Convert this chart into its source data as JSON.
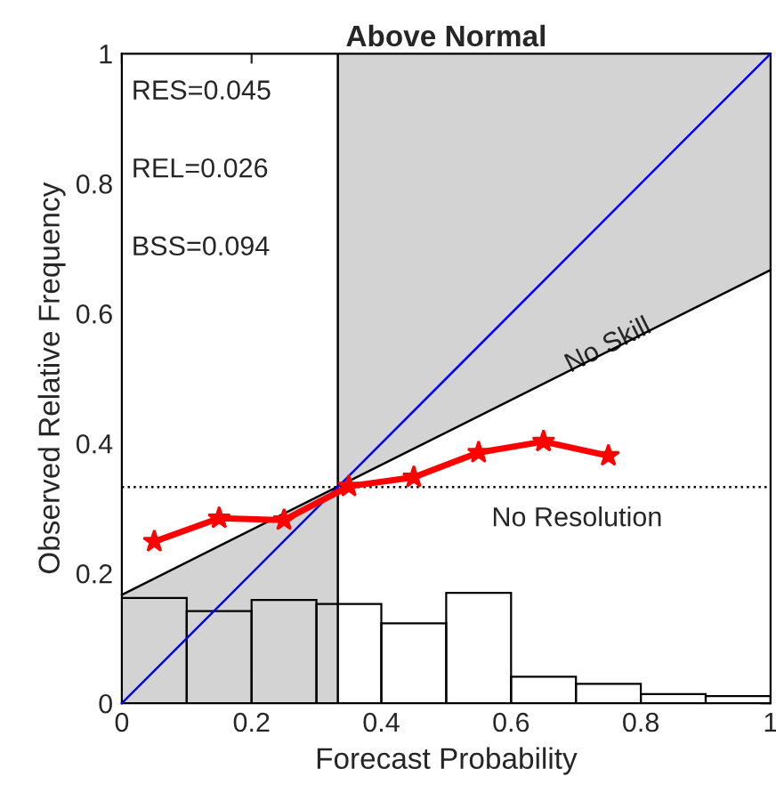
{
  "chart_data": {
    "type": "line",
    "title": "Above Normal",
    "xlabel": "Forecast Probability",
    "ylabel": "Observed Relative Frequency",
    "xlim": [
      0,
      1
    ],
    "ylim": [
      0,
      1
    ],
    "xticks": [
      0,
      0.2,
      0.4,
      0.6,
      0.8,
      1
    ],
    "yticks": [
      0,
      0.2,
      0.4,
      0.6,
      0.8,
      1
    ],
    "grid": false,
    "legend": false,
    "series": [
      {
        "type": "area",
        "color": "#d3d3d3",
        "x": [
          0,
          0.333
        ],
        "values": [
          0.167,
          0.333
        ]
      },
      {
        "type": "area",
        "color": "#d3d3d3",
        "x": [
          0.333,
          1
        ],
        "values": [
          1,
          1
        ]
      },
      {
        "type": "area",
        "color": "#ffffff",
        "x": [
          0.333,
          1
        ],
        "values": [
          0.333,
          0.667
        ]
      },
      {
        "color": "#000000",
        "x": [
          0,
          1
        ],
        "values": [
          0.167,
          0.667
        ]
      },
      {
        "type": "histogram",
        "color": "#000000",
        "bins": [
          0,
          0.1,
          0.2,
          0.3,
          0.4,
          0.5,
          0.6,
          0.7,
          0.8,
          0.9,
          1
        ],
        "values": [
          0.162,
          0.142,
          0.159,
          0.153,
          0.123,
          0.17,
          0.041,
          0.03,
          0.014,
          0.011
        ]
      },
      {
        "color": "#0000ff",
        "x": [
          0,
          1
        ],
        "values": [
          0,
          1
        ]
      },
      {
        "color": "#ff0000",
        "marker": "star",
        "x": [
          0.05,
          0.15,
          0.25,
          0.35,
          0.45,
          0.55,
          0.65,
          0.75
        ],
        "values": [
          0.249,
          0.285,
          0.282,
          0.334,
          0.348,
          0.386,
          0.403,
          0.381
        ]
      }
    ],
    "ref_lines": [
      {
        "axis": "y",
        "value": 0.333,
        "label": "No Resolution",
        "color": "#000000",
        "line_style": "dotted"
      },
      {
        "axis": "x",
        "value": 0.333,
        "color": "#000000",
        "line_style": "solid"
      }
    ],
    "annotations": [
      "RES=0.045",
      "REL=0.026",
      "BSS=0.094",
      {
        "text": "No Skill",
        "x": 0.75,
        "y": 0.55
      }
    ]
  }
}
